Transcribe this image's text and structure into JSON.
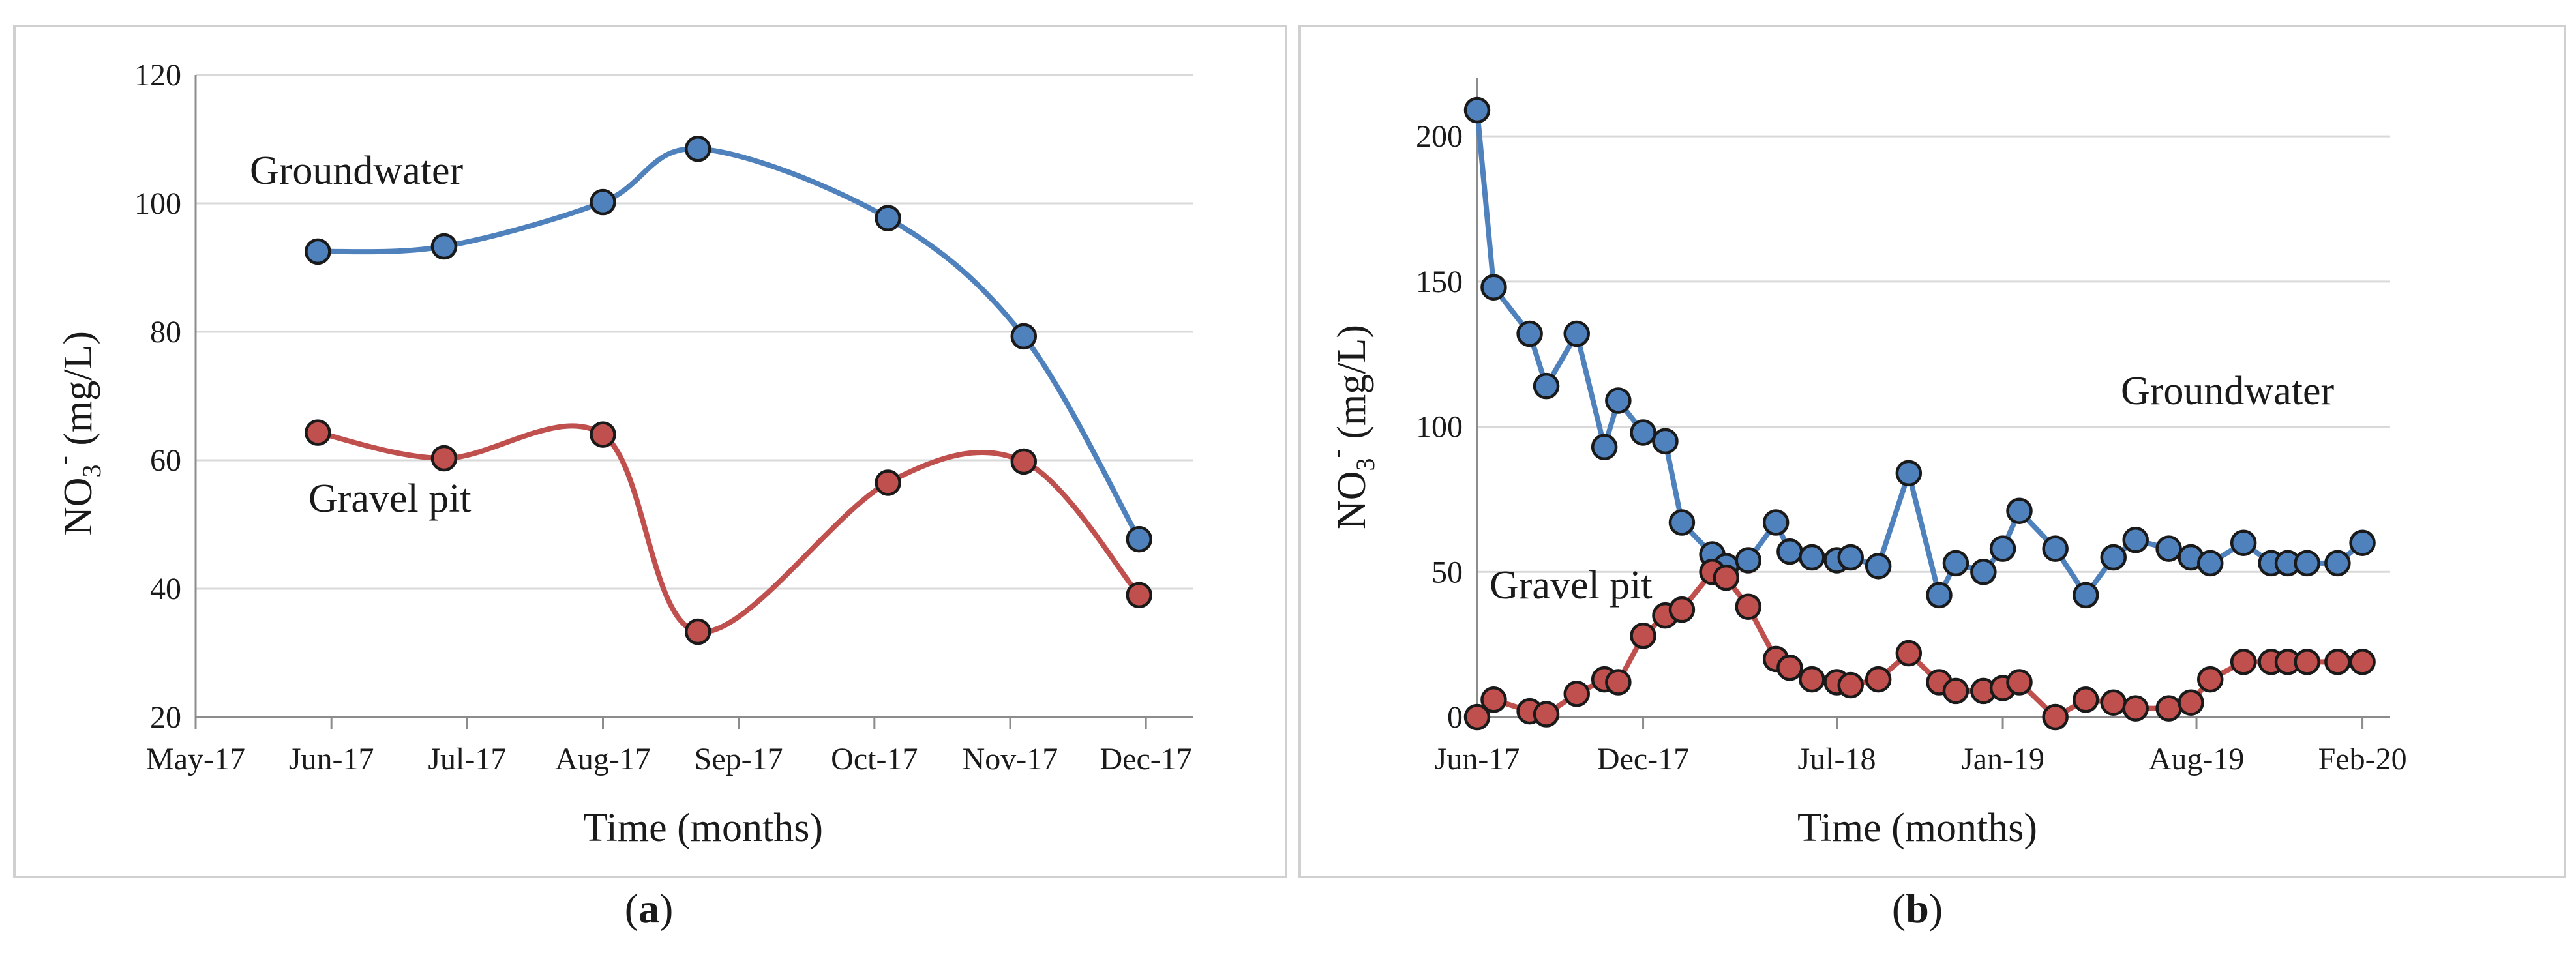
{
  "colors": {
    "groundwater": "#4f81bd",
    "gravel_pit": "#c0504d"
  },
  "chart_data": [
    {
      "type": "line",
      "panel_label": "(a)",
      "panel_letter": "a",
      "smooth": true,
      "xlabel": "Time (months)",
      "ylabel": "NO3- (mg/L)",
      "ylabel_parts": {
        "main": "NO",
        "sub": "3",
        "sup": "-",
        "unit": " (mg/L)"
      },
      "ylim": [
        20,
        120
      ],
      "yticks": [
        20,
        40,
        60,
        80,
        100,
        120
      ],
      "xlim": [
        0,
        7.35
      ],
      "xticks": [
        {
          "label": "May-17",
          "x": 0
        },
        {
          "label": "Jun-17",
          "x": 1
        },
        {
          "label": "Jul-17",
          "x": 2
        },
        {
          "label": "Aug-17",
          "x": 3
        },
        {
          "label": "Sep-17",
          "x": 4
        },
        {
          "label": "Oct-17",
          "x": 5
        },
        {
          "label": "Nov-17",
          "x": 6
        },
        {
          "label": "Dec-17",
          "x": 7
        }
      ],
      "series": [
        {
          "name": "Groundwater",
          "color_key": "groundwater",
          "x": [
            0.9,
            1.83,
            3.0,
            3.7,
            5.1,
            6.1,
            6.95
          ],
          "values": [
            92.5,
            93.3,
            100.2,
            108.5,
            97.7,
            79.3,
            47.7
          ]
        },
        {
          "name": "Gravel pit",
          "color_key": "gravel_pit",
          "x": [
            0.9,
            1.83,
            3.0,
            3.7,
            5.1,
            6.1,
            6.95
          ],
          "values": [
            64.3,
            60.3,
            64.0,
            33.3,
            56.5,
            59.8,
            39.0
          ]
        }
      ]
    },
    {
      "type": "line",
      "panel_label": "(b)",
      "panel_letter": "b",
      "smooth": false,
      "xlabel": "Time (months)",
      "ylabel": "NO3- (mg/L)",
      "ylabel_parts": {
        "main": "NO",
        "sub": "3",
        "sup": "-",
        "unit": " (mg/L)"
      },
      "ylim": [
        0,
        220
      ],
      "yticks": [
        0,
        50,
        100,
        150,
        200
      ],
      "xlim": [
        0,
        33
      ],
      "xticks": [
        {
          "label": "Jun-17",
          "x": 0
        },
        {
          "label": "Dec-17",
          "x": 6
        },
        {
          "label": "Jul-18",
          "x": 13
        },
        {
          "label": "Jan-19",
          "x": 19
        },
        {
          "label": "Aug-19",
          "x": 26
        },
        {
          "label": "Feb-20",
          "x": 32
        }
      ],
      "series": [
        {
          "name": "Groundwater",
          "color_key": "groundwater",
          "x": [
            0,
            0.6,
            1.9,
            2.5,
            3.6,
            4.6,
            5.1,
            6.0,
            6.8,
            7.4,
            8.5,
            9.0,
            9.8,
            10.8,
            11.3,
            12.1,
            13.0,
            13.5,
            14.5,
            15.6,
            16.7,
            17.3,
            18.3,
            19.0,
            19.6,
            20.9,
            22.0,
            23.0,
            23.8,
            25.0,
            25.8,
            26.5,
            27.7,
            28.7,
            29.3,
            30.0,
            31.1,
            32.0
          ],
          "values": [
            209,
            148,
            132,
            114,
            132,
            93,
            109,
            98,
            95,
            67,
            56,
            52,
            54,
            67,
            57,
            55,
            54,
            55,
            52,
            84,
            42,
            53,
            50,
            58,
            71,
            58,
            42,
            55,
            61,
            58,
            55,
            53,
            60,
            53,
            53,
            53,
            53,
            60
          ]
        },
        {
          "name": "Gravel pit",
          "color_key": "gravel_pit",
          "x": [
            0,
            0.6,
            1.9,
            2.5,
            3.6,
            4.6,
            5.1,
            6.0,
            6.8,
            7.4,
            8.5,
            9.0,
            9.8,
            10.8,
            11.3,
            12.1,
            13.0,
            13.5,
            14.5,
            15.6,
            16.7,
            17.3,
            18.3,
            19.0,
            19.6,
            20.9,
            22.0,
            23.0,
            23.8,
            25.0,
            25.8,
            26.5,
            27.7,
            28.7,
            29.3,
            30.0,
            31.1,
            32.0
          ],
          "values": [
            0,
            6,
            2,
            1,
            8,
            13,
            12,
            28,
            35,
            37,
            50,
            48,
            38,
            20,
            17,
            13,
            12,
            11,
            13,
            22,
            12,
            9,
            9,
            10,
            12,
            0,
            6,
            5,
            3,
            3,
            5,
            13,
            19,
            19,
            19,
            19,
            19,
            19
          ]
        }
      ]
    }
  ]
}
